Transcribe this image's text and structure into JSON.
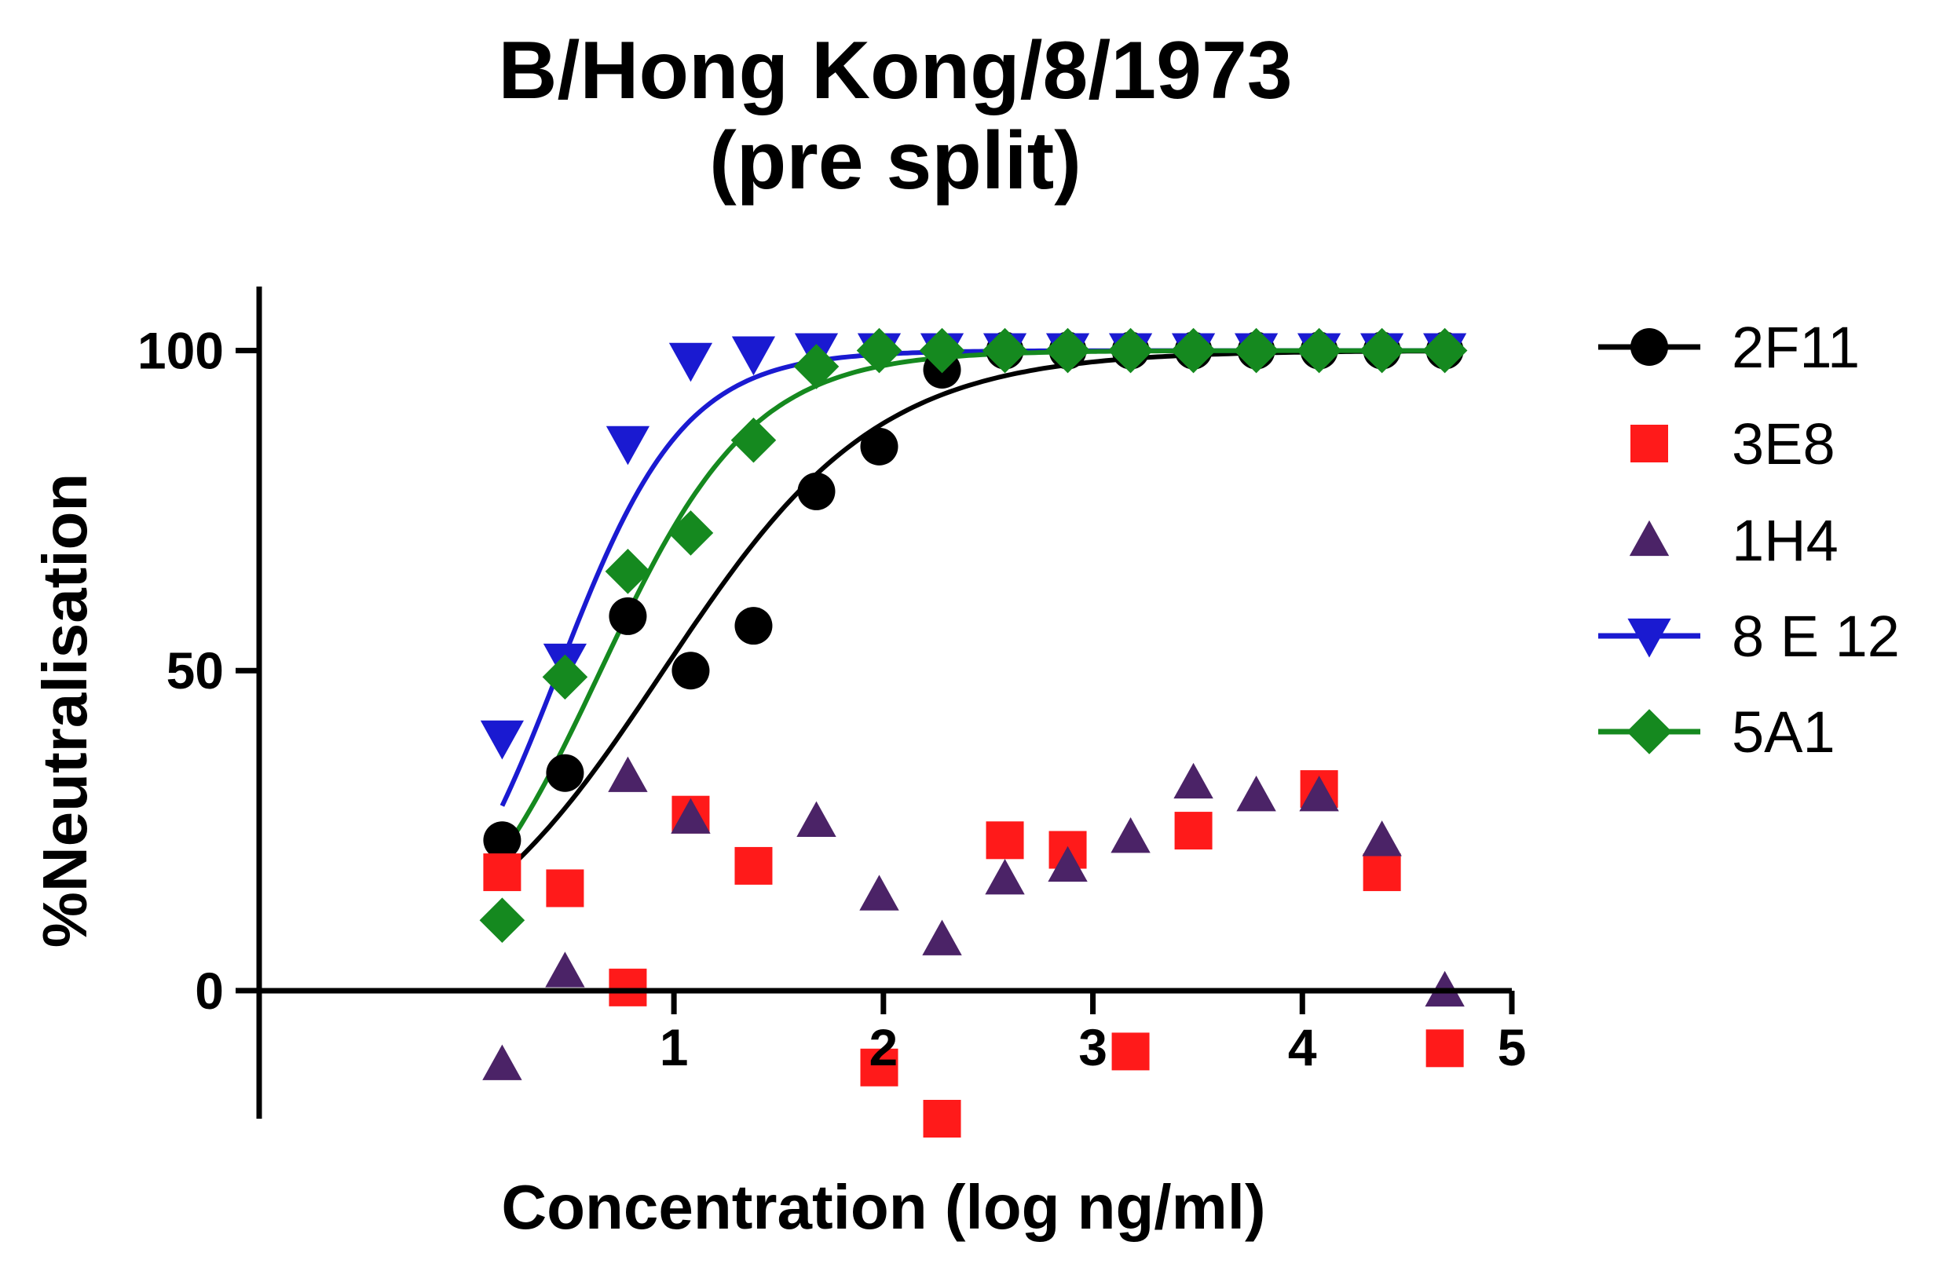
{
  "chart_data": {
    "type": "scatter",
    "title": "B/Hong Kong/8/1973",
    "subtitle": "(pre split)",
    "xlabel": "Concentration  (log ng/ml)",
    "ylabel": "%Neutralisation",
    "xlim": [
      -0.98,
      5
    ],
    "ylim": [
      -20,
      110
    ],
    "x_ticks": [
      "1",
      "2",
      "3",
      "4",
      "5"
    ],
    "y_ticks": [
      "0",
      "50",
      "100"
    ],
    "grid": false,
    "legend_position": "right",
    "series": [
      {
        "name": "2F11",
        "color": "#000000",
        "marker": "circle",
        "fit_curve": true,
        "points": [
          [
            0.18,
            23.5
          ],
          [
            0.48,
            34
          ],
          [
            0.78,
            58.5
          ],
          [
            1.08,
            50
          ],
          [
            1.38,
            57
          ],
          [
            1.68,
            78
          ],
          [
            1.98,
            85
          ],
          [
            2.28,
            97
          ],
          [
            2.58,
            100
          ],
          [
            2.88,
            100
          ],
          [
            3.18,
            100
          ],
          [
            3.48,
            100
          ],
          [
            3.78,
            100
          ],
          [
            4.08,
            100
          ],
          [
            4.38,
            100
          ],
          [
            4.68,
            100
          ]
        ],
        "fit": {
          "bottom": 0,
          "top": 100,
          "logEC50": 0.95,
          "hill": 0.85
        }
      },
      {
        "name": "3E8",
        "color": "#ff1a1a",
        "marker": "square",
        "fit_curve": false,
        "points": [
          [
            0.18,
            18.5
          ],
          [
            0.48,
            16
          ],
          [
            0.78,
            0.5
          ],
          [
            1.08,
            27.5
          ],
          [
            1.38,
            19.5
          ],
          [
            1.98,
            -12
          ],
          [
            2.28,
            -20
          ],
          [
            2.58,
            23.5
          ],
          [
            2.88,
            22
          ],
          [
            3.18,
            -9.5
          ],
          [
            3.48,
            25
          ],
          [
            4.08,
            31.5
          ],
          [
            4.38,
            18.5
          ],
          [
            4.68,
            -9
          ]
        ]
      },
      {
        "name": "1H4",
        "color": "#4b2367",
        "marker": "triangle-up",
        "fit_curve": false,
        "points": [
          [
            0.18,
            -11.5
          ],
          [
            0.48,
            3
          ],
          [
            0.78,
            33.5
          ],
          [
            1.08,
            27
          ],
          [
            1.68,
            26.5
          ],
          [
            1.98,
            15
          ],
          [
            2.28,
            8
          ],
          [
            2.58,
            17.5
          ],
          [
            2.88,
            19.5
          ],
          [
            3.18,
            24
          ],
          [
            3.48,
            32.5
          ],
          [
            3.78,
            30.5
          ],
          [
            4.08,
            30.5
          ],
          [
            4.38,
            23.5
          ],
          [
            4.68,
            0
          ]
        ]
      },
      {
        "name": "8 E 12",
        "color": "#1a1ad1",
        "marker": "triangle-down",
        "fit_curve": true,
        "points": [
          [
            0.18,
            39.5
          ],
          [
            0.48,
            51.5
          ],
          [
            0.78,
            85.5
          ],
          [
            1.08,
            98.5
          ],
          [
            1.38,
            99.5
          ],
          [
            1.68,
            100
          ],
          [
            1.98,
            100
          ],
          [
            2.28,
            100
          ],
          [
            2.58,
            100
          ],
          [
            2.88,
            100
          ],
          [
            3.18,
            100
          ],
          [
            3.48,
            100
          ],
          [
            3.78,
            100
          ],
          [
            4.08,
            100
          ],
          [
            4.38,
            100
          ],
          [
            4.68,
            100
          ]
        ],
        "fit": {
          "bottom": 0,
          "top": 100,
          "logEC50": 0.45,
          "hill": 1.45
        }
      },
      {
        "name": "5A1",
        "color": "#15891f",
        "marker": "diamond",
        "fit_curve": true,
        "points": [
          [
            0.18,
            11
          ],
          [
            0.48,
            49
          ],
          [
            0.78,
            65.5
          ],
          [
            1.08,
            71.5
          ],
          [
            1.38,
            86
          ],
          [
            1.68,
            97.5
          ],
          [
            1.98,
            100
          ],
          [
            2.28,
            100
          ],
          [
            2.58,
            100
          ],
          [
            2.88,
            100
          ],
          [
            3.18,
            100
          ],
          [
            3.48,
            100
          ],
          [
            3.78,
            100
          ],
          [
            4.08,
            100
          ],
          [
            4.38,
            100
          ],
          [
            4.68,
            100
          ]
        ],
        "fit": {
          "bottom": 0,
          "top": 100,
          "logEC50": 0.65,
          "hill": 1.2
        }
      }
    ]
  }
}
